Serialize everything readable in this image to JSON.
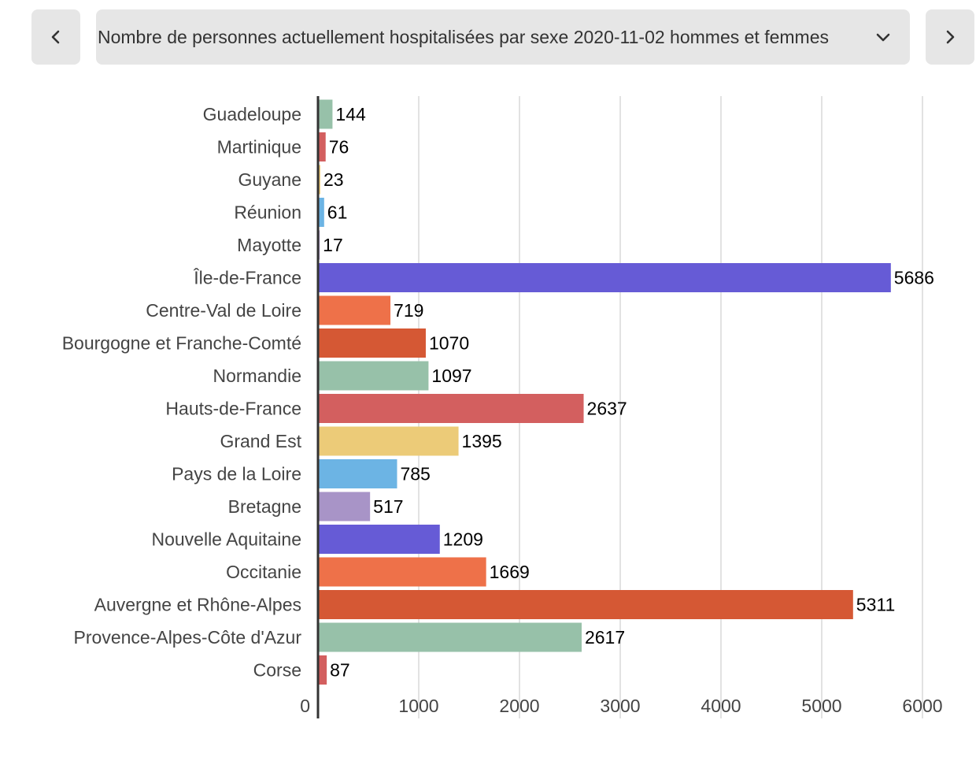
{
  "navigation": {
    "prev_icon": "chevron-left-icon",
    "next_icon": "chevron-right-icon",
    "dropdown_icon": "chevron-down-icon"
  },
  "selector": {
    "text": "Nombre de personnes actuellement hospitalisées par sexe 2020-11-02 hommes et femmes"
  },
  "chart_data": {
    "type": "bar",
    "orientation": "horizontal",
    "title": "",
    "xlabel": "",
    "ylabel": "",
    "xlim": [
      0,
      6000
    ],
    "x_ticks": [
      0,
      1000,
      2000,
      3000,
      4000,
      5000,
      6000
    ],
    "grid": true,
    "categories": [
      "Guadeloupe",
      "Martinique",
      "Guyane",
      "Réunion",
      "Mayotte",
      "Île-de-France",
      "Centre-Val de Loire",
      "Bourgogne et Franche-Comté",
      "Normandie",
      "Hauts-de-France",
      "Grand Est",
      "Pays de la Loire",
      "Bretagne",
      "Nouvelle Aquitaine",
      "Occitanie",
      "Auvergne et Rhône-Alpes",
      "Provence-Alpes-Côte d'Azur",
      "Corse"
    ],
    "values": [
      144,
      76,
      23,
      61,
      17,
      5686,
      719,
      1070,
      1097,
      2637,
      1395,
      785,
      517,
      1209,
      1669,
      5311,
      2617,
      87
    ],
    "colors": [
      "#97c1a9",
      "#d35f5f",
      "#eccb78",
      "#6cb4e4",
      "#a894c7",
      "#665bd6",
      "#ee7149",
      "#d55834",
      "#97c1a9",
      "#d35f5f",
      "#eccb78",
      "#6cb4e4",
      "#a894c7",
      "#665bd6",
      "#ee7149",
      "#d55834",
      "#97c1a9",
      "#d35f5f"
    ]
  }
}
